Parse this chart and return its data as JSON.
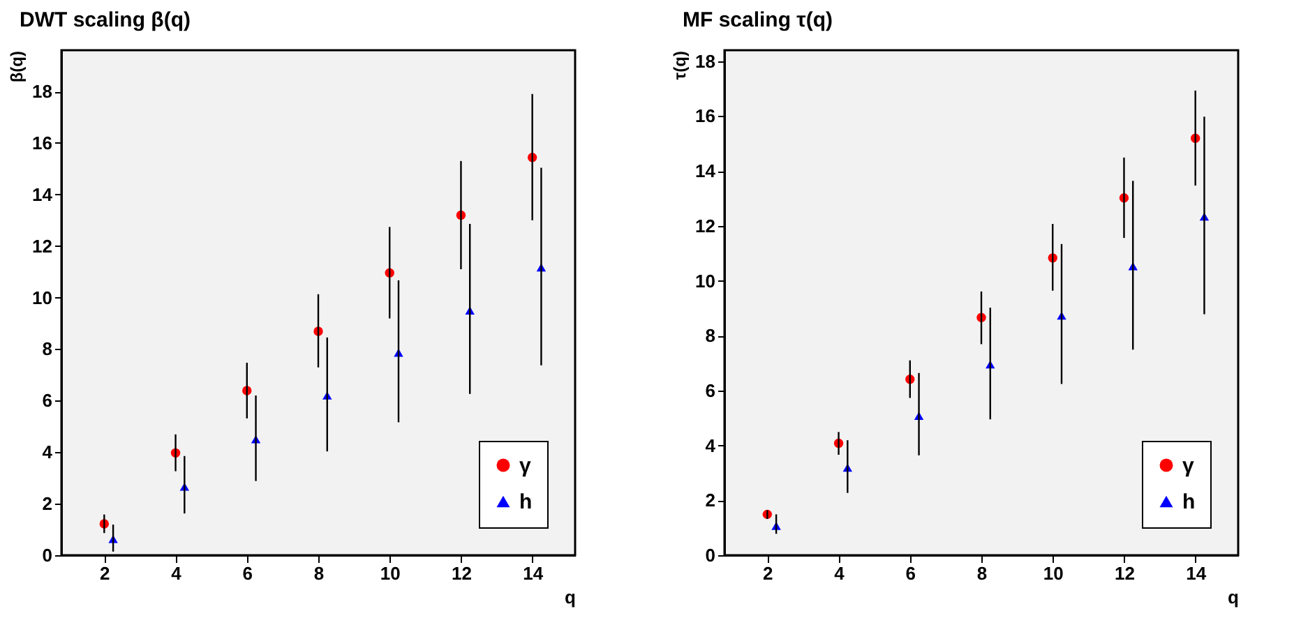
{
  "chart_data": [
    {
      "type": "scatter",
      "title": "DWT scaling   β(q)",
      "xlabel": "q",
      "ylabel": "β(q)",
      "xlim": [
        0.8,
        15.2
      ],
      "xticks": [
        2,
        4,
        6,
        8,
        10,
        12,
        14
      ],
      "ylim": [
        0,
        19.6
      ],
      "yticks": [
        0,
        2,
        4,
        6,
        8,
        10,
        12,
        14,
        16,
        18
      ],
      "legend": "bottom right",
      "grid": false,
      "series": [
        {
          "name": "γ",
          "color": "#ff0000",
          "marker": "circle",
          "x": [
            2,
            4,
            6,
            8,
            10,
            12,
            14
          ],
          "values": [
            1.22,
            3.97,
            6.39,
            8.69,
            10.96,
            13.2,
            15.44
          ],
          "errors": [
            [
              0.86,
              1.58
            ],
            [
              3.26,
              4.69
            ],
            [
              5.31,
              7.47
            ],
            [
              7.29,
              10.13
            ],
            [
              9.19,
              12.74
            ],
            [
              11.1,
              15.3
            ],
            [
              13.0,
              17.9
            ]
          ]
        },
        {
          "name": "h",
          "color": "#0000ff",
          "marker": "triangle",
          "x": [
            2.25,
            4.25,
            6.25,
            8.25,
            10.25,
            12.25,
            14.25
          ],
          "values": [
            0.63,
            2.66,
            4.5,
            6.2,
            7.86,
            9.5,
            11.17
          ],
          "errors": [
            [
              0.14,
              1.19
            ],
            [
              1.62,
              3.85
            ],
            [
              2.88,
              6.2
            ],
            [
              4.03,
              8.45
            ],
            [
              5.16,
              10.67
            ],
            [
              6.26,
              12.86
            ],
            [
              7.37,
              15.04
            ]
          ]
        }
      ]
    },
    {
      "type": "scatter",
      "title": "MF scaling     τ(q)",
      "xlabel": "q",
      "ylabel": "τ(q)",
      "xlim": [
        0.8,
        15.2
      ],
      "xticks": [
        2,
        4,
        6,
        8,
        10,
        12,
        14
      ],
      "ylim": [
        0,
        18.4
      ],
      "yticks": [
        0,
        2,
        4,
        6,
        8,
        10,
        12,
        14,
        16,
        18
      ],
      "legend": "bottom right",
      "grid": false,
      "series": [
        {
          "name": "γ",
          "color": "#ff0000",
          "marker": "circle",
          "x": [
            2,
            4,
            6,
            8,
            10,
            12,
            14
          ],
          "values": [
            1.49,
            4.08,
            6.41,
            8.66,
            10.83,
            13.02,
            15.19
          ],
          "errors": [
            [
              1.32,
              1.64
            ],
            [
              3.66,
              4.49
            ],
            [
              5.73,
              7.1
            ],
            [
              7.69,
              9.61
            ],
            [
              9.64,
              12.07
            ],
            [
              11.56,
              14.49
            ],
            [
              13.47,
              16.93
            ]
          ]
        },
        {
          "name": "h",
          "color": "#0000ff",
          "marker": "triangle",
          "x": [
            2.25,
            4.25,
            6.25,
            8.25,
            10.25,
            12.25,
            14.25
          ],
          "values": [
            1.07,
            3.19,
            5.08,
            6.95,
            8.73,
            10.53,
            12.34
          ],
          "errors": [
            [
              0.78,
              1.49
            ],
            [
              2.27,
              4.19
            ],
            [
              3.64,
              6.64
            ],
            [
              4.95,
              9.02
            ],
            [
              6.24,
              11.34
            ],
            [
              7.49,
              13.64
            ],
            [
              8.78,
              15.98
            ]
          ]
        }
      ]
    }
  ]
}
